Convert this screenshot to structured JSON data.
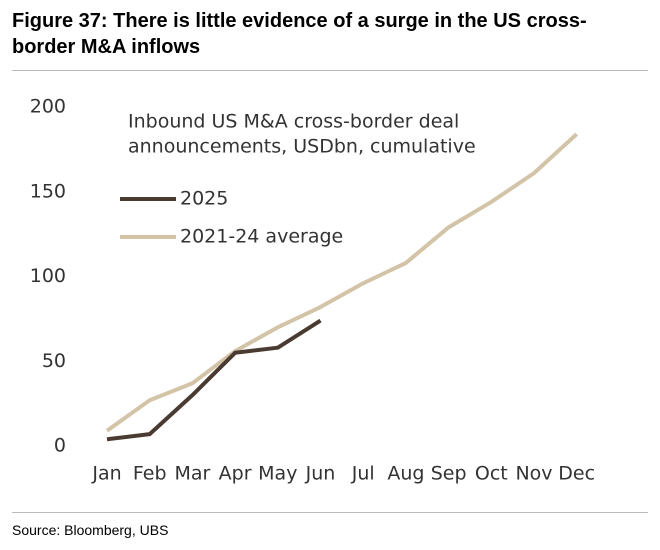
{
  "chart_data": {
    "type": "line",
    "title": "Figure 37: There is little evidence of a surge in the US cross-border M&A inflows",
    "annotation": [
      "Inbound US M&A cross-border deal",
      "announcements, USDbn, cumulative"
    ],
    "source": "Source: Bloomberg, UBS",
    "categories": [
      "Jan",
      "Feb",
      "Mar",
      "Apr",
      "May",
      "Jun",
      "Jul",
      "Aug",
      "Sep",
      "Oct",
      "Nov",
      "Dec"
    ],
    "series": [
      {
        "name": "2025",
        "color": "#4a3b32",
        "values": [
          4,
          7,
          30,
          55,
          58,
          74,
          null,
          null,
          null,
          null,
          null,
          null
        ]
      },
      {
        "name": "2021-24 average",
        "color": "#d3c4a8",
        "values": [
          9,
          27,
          37,
          56,
          70,
          82,
          96,
          108,
          129,
          144,
          161,
          184
        ]
      }
    ],
    "ylim": [
      0,
      200
    ],
    "yticks": [
      0,
      50,
      100,
      150,
      200
    ],
    "grid": false
  }
}
